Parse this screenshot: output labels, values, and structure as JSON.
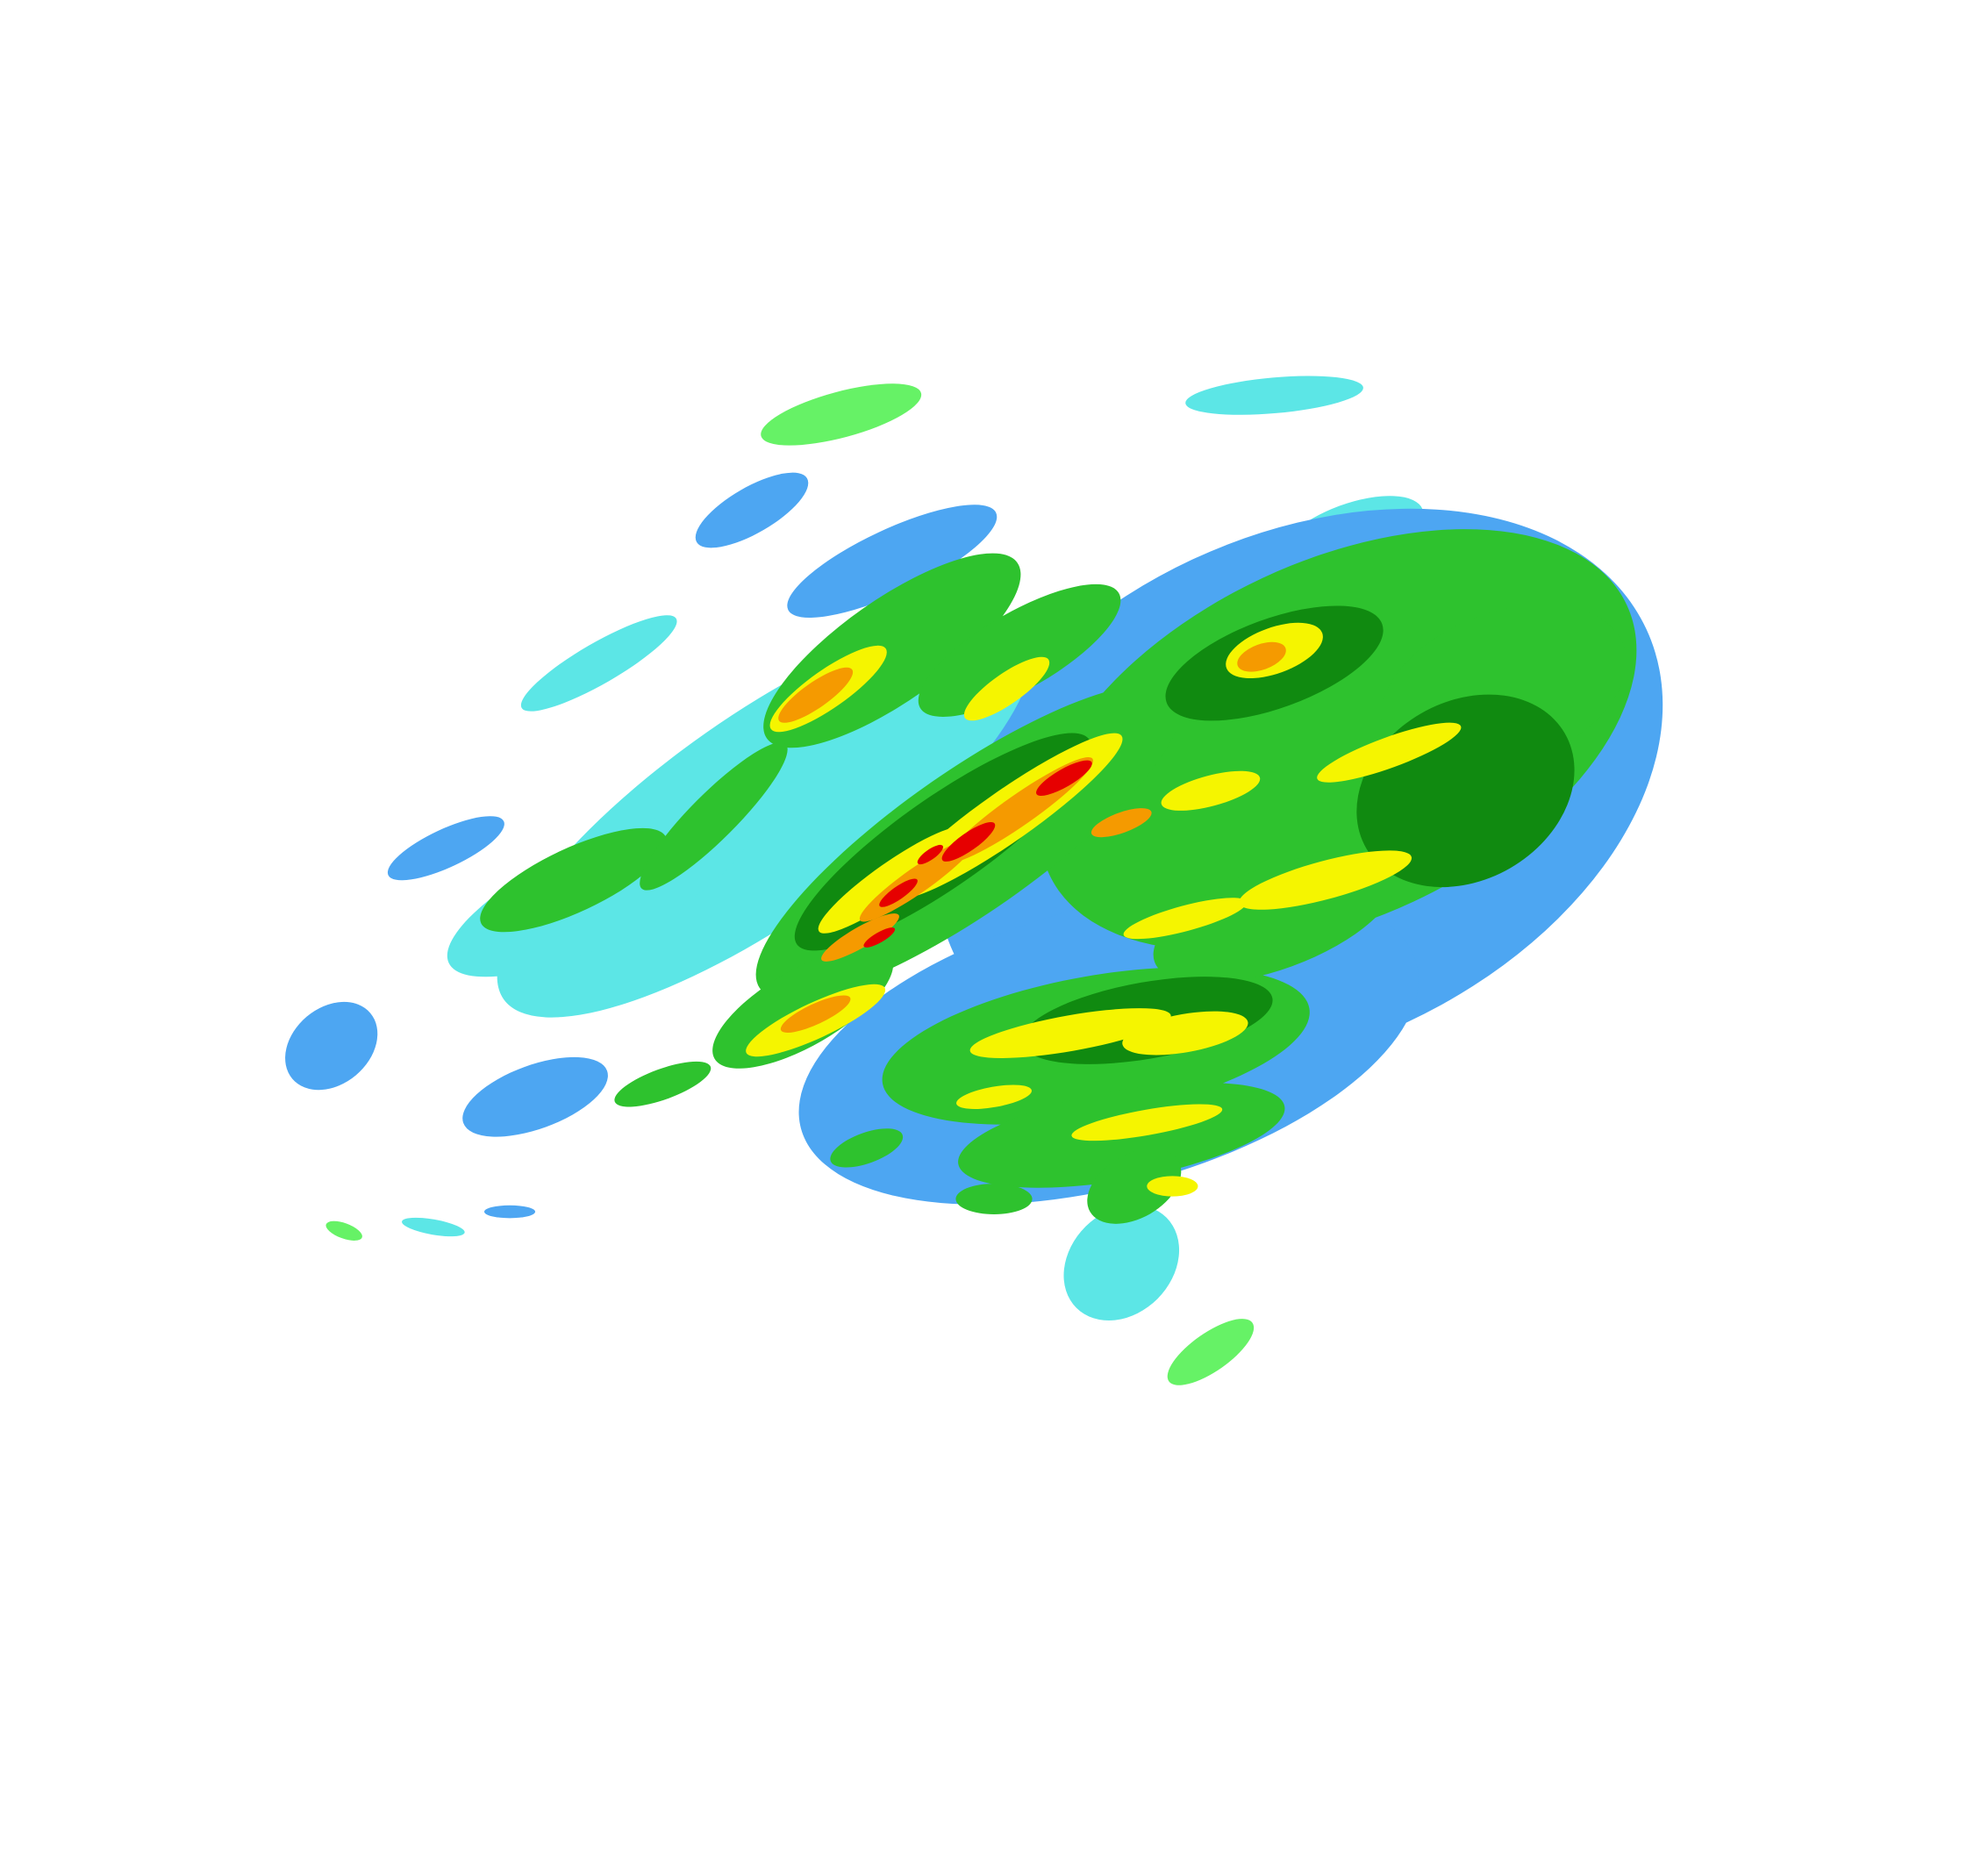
{
  "map": {
    "background": "#ffffff",
    "reflectivity_palette": {
      "very_light": "#4da6f2",
      "light": "#5ce6e6",
      "light_moderate": "#66f266",
      "moderate": "#2ec22e",
      "moderate_heavy": "#108a10",
      "heavy": "#f5f500",
      "very_heavy": "#f59a00",
      "intense": "#e60000"
    }
  }
}
